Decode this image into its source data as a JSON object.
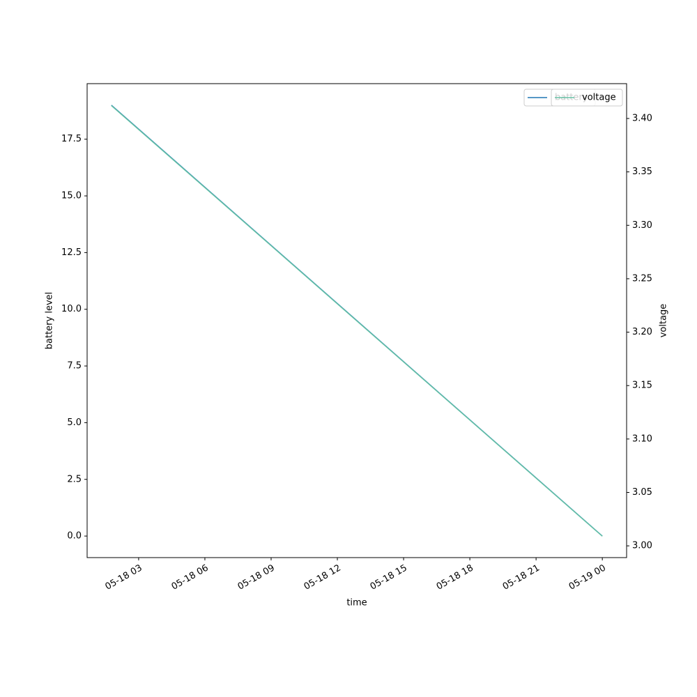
{
  "chart_data": {
    "type": "line",
    "x": [
      "05-18 01:46",
      "05-19 00:00"
    ],
    "xlim": [
      "05-18 00:40",
      "05-19 01:06"
    ],
    "xticks": [
      "05-18 03",
      "05-18 06",
      "05-18 09",
      "05-18 12",
      "05-18 15",
      "05-18 18",
      "05-18 21",
      "05-19 00"
    ],
    "xlabel": "time",
    "ylabel": "battery level",
    "y2label": "voltage",
    "ylim": [
      -0.95,
      19.95
    ],
    "yticks": [
      {
        "value": 0,
        "label": "0.0"
      },
      2.5,
      {
        "value": 5,
        "label": "5.0"
      },
      7.5,
      {
        "value": 10,
        "label": "10.0"
      },
      12.5,
      {
        "value": 15,
        "label": "15.0"
      },
      17.5
    ],
    "y2lim": [
      2.989,
      3.4326
    ],
    "y2ticks": [
      {
        "value": 3.0,
        "label": "3.00"
      },
      {
        "value": 3.05,
        "label": "3.05"
      },
      {
        "value": 3.1,
        "label": "3.10"
      },
      {
        "value": 3.15,
        "label": "3.15"
      },
      {
        "value": 3.2,
        "label": "3.20"
      },
      {
        "value": 3.25,
        "label": "3.25"
      },
      {
        "value": 3.3,
        "label": "3.30"
      },
      {
        "value": 3.35,
        "label": "3.35"
      },
      {
        "value": 3.4,
        "label": "3.40"
      }
    ],
    "series": [
      {
        "name": "battery",
        "color": "#1f77b4",
        "values": [
          19,
          0
        ]
      },
      {
        "name": "voltage",
        "color": "#66c2a5",
        "values": [
          3.412,
          3.009
        ],
        "axis": "y2"
      }
    ],
    "legend": "upper right"
  }
}
